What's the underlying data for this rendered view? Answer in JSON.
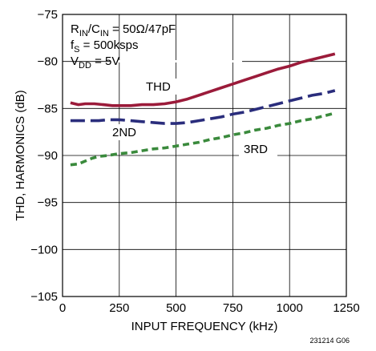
{
  "chart_data": {
    "type": "line",
    "xlabel": "INPUT FREQUENCY (kHz)",
    "ylabel": "THD, HARMONICS (dB)",
    "xlim": [
      0,
      1250
    ],
    "ylim": [
      -105,
      -75
    ],
    "xticks": [
      0,
      250,
      500,
      750,
      1000,
      1250
    ],
    "yticks": [
      -75,
      -80,
      -85,
      -90,
      -95,
      -100,
      -105
    ],
    "xtick_labels": [
      "0",
      "250",
      "500",
      "750",
      "1000",
      "1250"
    ],
    "ytick_labels": [
      "−75",
      "−80",
      "−85",
      "−90",
      "−95",
      "−100",
      "−105"
    ],
    "grid": true,
    "conditions": {
      "line1_main": "R",
      "line1_sub1": "IN",
      "line1_mid": "/C",
      "line1_sub2": "IN",
      "line1_end": " = 50Ω/47pF",
      "line2_main": "f",
      "line2_sub": "S",
      "line2_end": " = 500ksps",
      "line3_main": "V",
      "line3_sub": "DD",
      "line3_end": " = 5V"
    },
    "series": [
      {
        "name": "THD",
        "color": "#9b1b3a",
        "dash": "solid",
        "x": [
          35,
          70,
          100,
          140,
          180,
          220,
          260,
          300,
          350,
          400,
          450,
          500,
          550,
          600,
          650,
          700,
          750,
          800,
          850,
          900,
          950,
          1000,
          1050,
          1100,
          1150,
          1200
        ],
        "y": [
          -84.4,
          -84.6,
          -84.5,
          -84.5,
          -84.6,
          -84.7,
          -84.7,
          -84.7,
          -84.6,
          -84.6,
          -84.5,
          -84.3,
          -84.0,
          -83.6,
          -83.2,
          -82.8,
          -82.4,
          -82.0,
          -81.6,
          -81.2,
          -80.8,
          -80.5,
          -80.1,
          -79.8,
          -79.5,
          -79.2
        ]
      },
      {
        "name": "2ND",
        "color": "#2a2d7c",
        "dash": "long",
        "x": [
          35,
          80,
          120,
          160,
          200,
          250,
          300,
          350,
          400,
          450,
          500,
          550,
          600,
          650,
          700,
          750,
          800,
          850,
          900,
          950,
          1000,
          1050,
          1100,
          1150,
          1200
        ],
        "y": [
          -86.3,
          -86.3,
          -86.3,
          -86.3,
          -86.2,
          -86.2,
          -86.3,
          -86.4,
          -86.5,
          -86.6,
          -86.6,
          -86.5,
          -86.3,
          -86.1,
          -85.9,
          -85.6,
          -85.4,
          -85.1,
          -84.8,
          -84.5,
          -84.2,
          -83.9,
          -83.6,
          -83.4,
          -83.1
        ]
      },
      {
        "name": "3RD",
        "color": "#3a8a3c",
        "dash": "short",
        "x": [
          35,
          70,
          100,
          130,
          160,
          200,
          250,
          300,
          350,
          400,
          450,
          500,
          550,
          600,
          650,
          700,
          750,
          800,
          850,
          900,
          950,
          1000,
          1050,
          1100,
          1150,
          1200
        ],
        "y": [
          -91.0,
          -90.9,
          -90.6,
          -90.3,
          -90.1,
          -90.0,
          -89.8,
          -89.7,
          -89.5,
          -89.3,
          -89.2,
          -89.0,
          -88.8,
          -88.6,
          -88.3,
          -88.1,
          -87.8,
          -87.6,
          -87.3,
          -87.1,
          -86.8,
          -86.6,
          -86.3,
          -86.1,
          -85.8,
          -85.5
        ]
      }
    ],
    "annotations": [
      {
        "text": "THD",
        "series": 0
      },
      {
        "text": "2ND",
        "series": 1
      },
      {
        "text": "3RD",
        "series": 2
      }
    ],
    "figure_id": "231214 G06"
  }
}
